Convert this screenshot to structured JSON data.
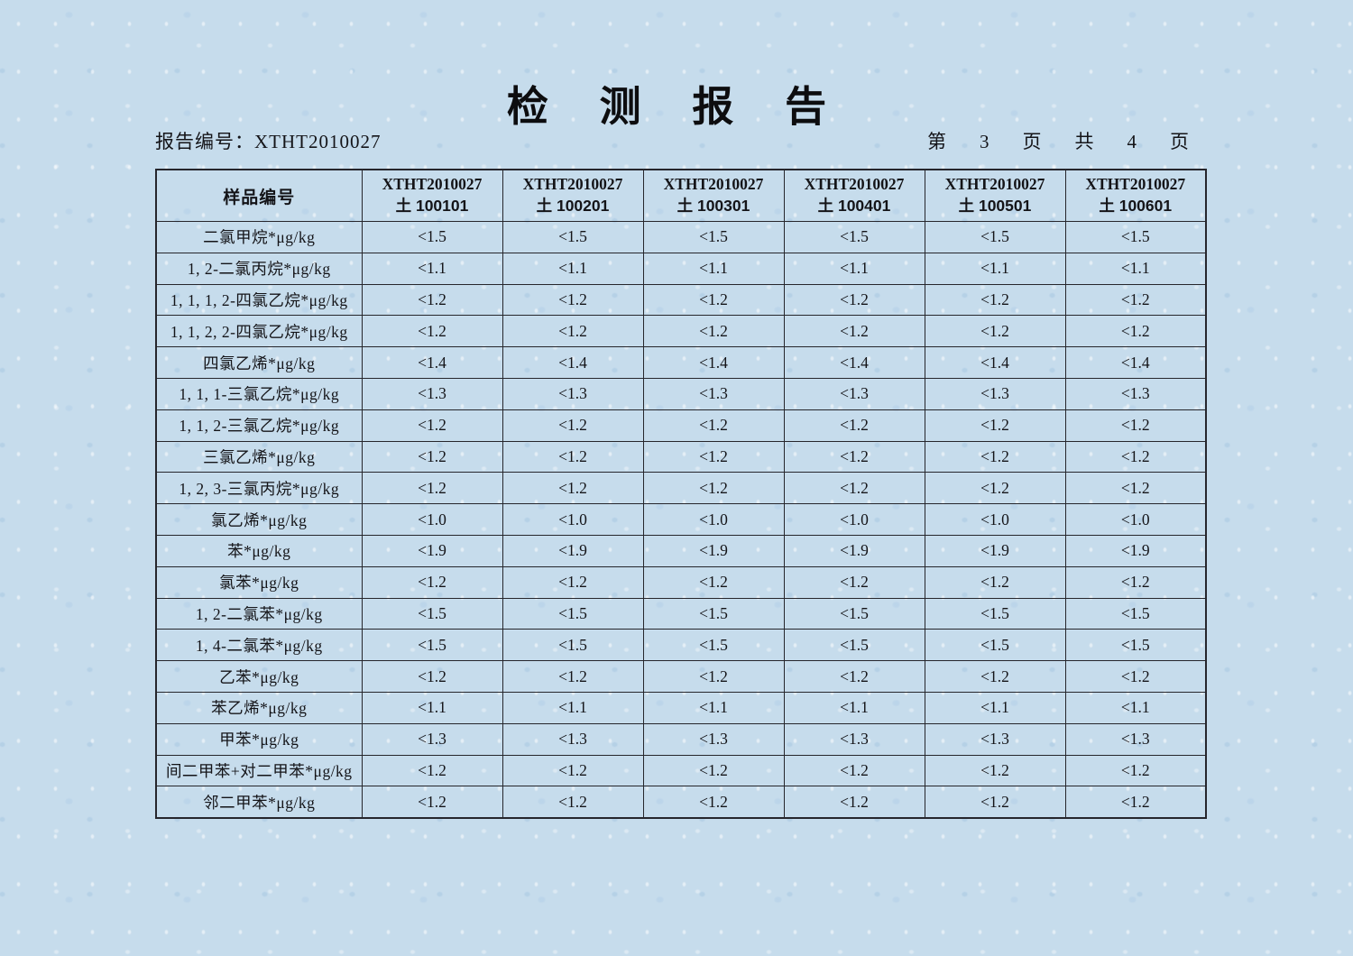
{
  "page": {
    "title": "检 测 报 告",
    "report_no_label": "报告编号：",
    "report_no": "XTHT2010027",
    "pagination": {
      "p1": "第",
      "current": "3",
      "p2": "页",
      "p3": "共",
      "total": "4",
      "p4": "页"
    }
  },
  "colors": {
    "paper_background": "#c6dcec",
    "table_border": "#26262c",
    "text": "#141418"
  },
  "table": {
    "corner_header": "样品编号",
    "column_headers": [
      {
        "line1": "XTHT2010027",
        "line2": "土 100101"
      },
      {
        "line1": "XTHT2010027",
        "line2": "土 100201"
      },
      {
        "line1": "XTHT2010027",
        "line2": "土 100301"
      },
      {
        "line1": "XTHT2010027",
        "line2": "土 100401"
      },
      {
        "line1": "XTHT2010027",
        "line2": "土 100501"
      },
      {
        "line1": "XTHT2010027",
        "line2": "土 100601"
      }
    ],
    "rows": [
      {
        "name": "二氯甲烷*μg/kg",
        "values": [
          "<1.5",
          "<1.5",
          "<1.5",
          "<1.5",
          "<1.5",
          "<1.5"
        ]
      },
      {
        "name": "1, 2-二氯丙烷*μg/kg",
        "values": [
          "<1.1",
          "<1.1",
          "<1.1",
          "<1.1",
          "<1.1",
          "<1.1"
        ]
      },
      {
        "name": "1, 1, 1, 2-四氯乙烷*μg/kg",
        "values": [
          "<1.2",
          "<1.2",
          "<1.2",
          "<1.2",
          "<1.2",
          "<1.2"
        ]
      },
      {
        "name": "1, 1, 2, 2-四氯乙烷*μg/kg",
        "values": [
          "<1.2",
          "<1.2",
          "<1.2",
          "<1.2",
          "<1.2",
          "<1.2"
        ]
      },
      {
        "name": "四氯乙烯*μg/kg",
        "values": [
          "<1.4",
          "<1.4",
          "<1.4",
          "<1.4",
          "<1.4",
          "<1.4"
        ]
      },
      {
        "name": "1, 1, 1-三氯乙烷*μg/kg",
        "values": [
          "<1.3",
          "<1.3",
          "<1.3",
          "<1.3",
          "<1.3",
          "<1.3"
        ]
      },
      {
        "name": "1, 1, 2-三氯乙烷*μg/kg",
        "values": [
          "<1.2",
          "<1.2",
          "<1.2",
          "<1.2",
          "<1.2",
          "<1.2"
        ]
      },
      {
        "name": "三氯乙烯*μg/kg",
        "values": [
          "<1.2",
          "<1.2",
          "<1.2",
          "<1.2",
          "<1.2",
          "<1.2"
        ]
      },
      {
        "name": "1, 2, 3-三氯丙烷*μg/kg",
        "values": [
          "<1.2",
          "<1.2",
          "<1.2",
          "<1.2",
          "<1.2",
          "<1.2"
        ]
      },
      {
        "name": "氯乙烯*μg/kg",
        "values": [
          "<1.0",
          "<1.0",
          "<1.0",
          "<1.0",
          "<1.0",
          "<1.0"
        ]
      },
      {
        "name": "苯*μg/kg",
        "values": [
          "<1.9",
          "<1.9",
          "<1.9",
          "<1.9",
          "<1.9",
          "<1.9"
        ]
      },
      {
        "name": "氯苯*μg/kg",
        "values": [
          "<1.2",
          "<1.2",
          "<1.2",
          "<1.2",
          "<1.2",
          "<1.2"
        ]
      },
      {
        "name": "1, 2-二氯苯*μg/kg",
        "values": [
          "<1.5",
          "<1.5",
          "<1.5",
          "<1.5",
          "<1.5",
          "<1.5"
        ]
      },
      {
        "name": "1, 4-二氯苯*μg/kg",
        "values": [
          "<1.5",
          "<1.5",
          "<1.5",
          "<1.5",
          "<1.5",
          "<1.5"
        ]
      },
      {
        "name": "乙苯*μg/kg",
        "values": [
          "<1.2",
          "<1.2",
          "<1.2",
          "<1.2",
          "<1.2",
          "<1.2"
        ]
      },
      {
        "name": "苯乙烯*μg/kg",
        "values": [
          "<1.1",
          "<1.1",
          "<1.1",
          "<1.1",
          "<1.1",
          "<1.1"
        ]
      },
      {
        "name": "甲苯*μg/kg",
        "values": [
          "<1.3",
          "<1.3",
          "<1.3",
          "<1.3",
          "<1.3",
          "<1.3"
        ]
      },
      {
        "name": "间二甲苯+对二甲苯*μg/kg",
        "values": [
          "<1.2",
          "<1.2",
          "<1.2",
          "<1.2",
          "<1.2",
          "<1.2"
        ]
      },
      {
        "name": "邻二甲苯*μg/kg",
        "values": [
          "<1.2",
          "<1.2",
          "<1.2",
          "<1.2",
          "<1.2",
          "<1.2"
        ]
      }
    ]
  }
}
